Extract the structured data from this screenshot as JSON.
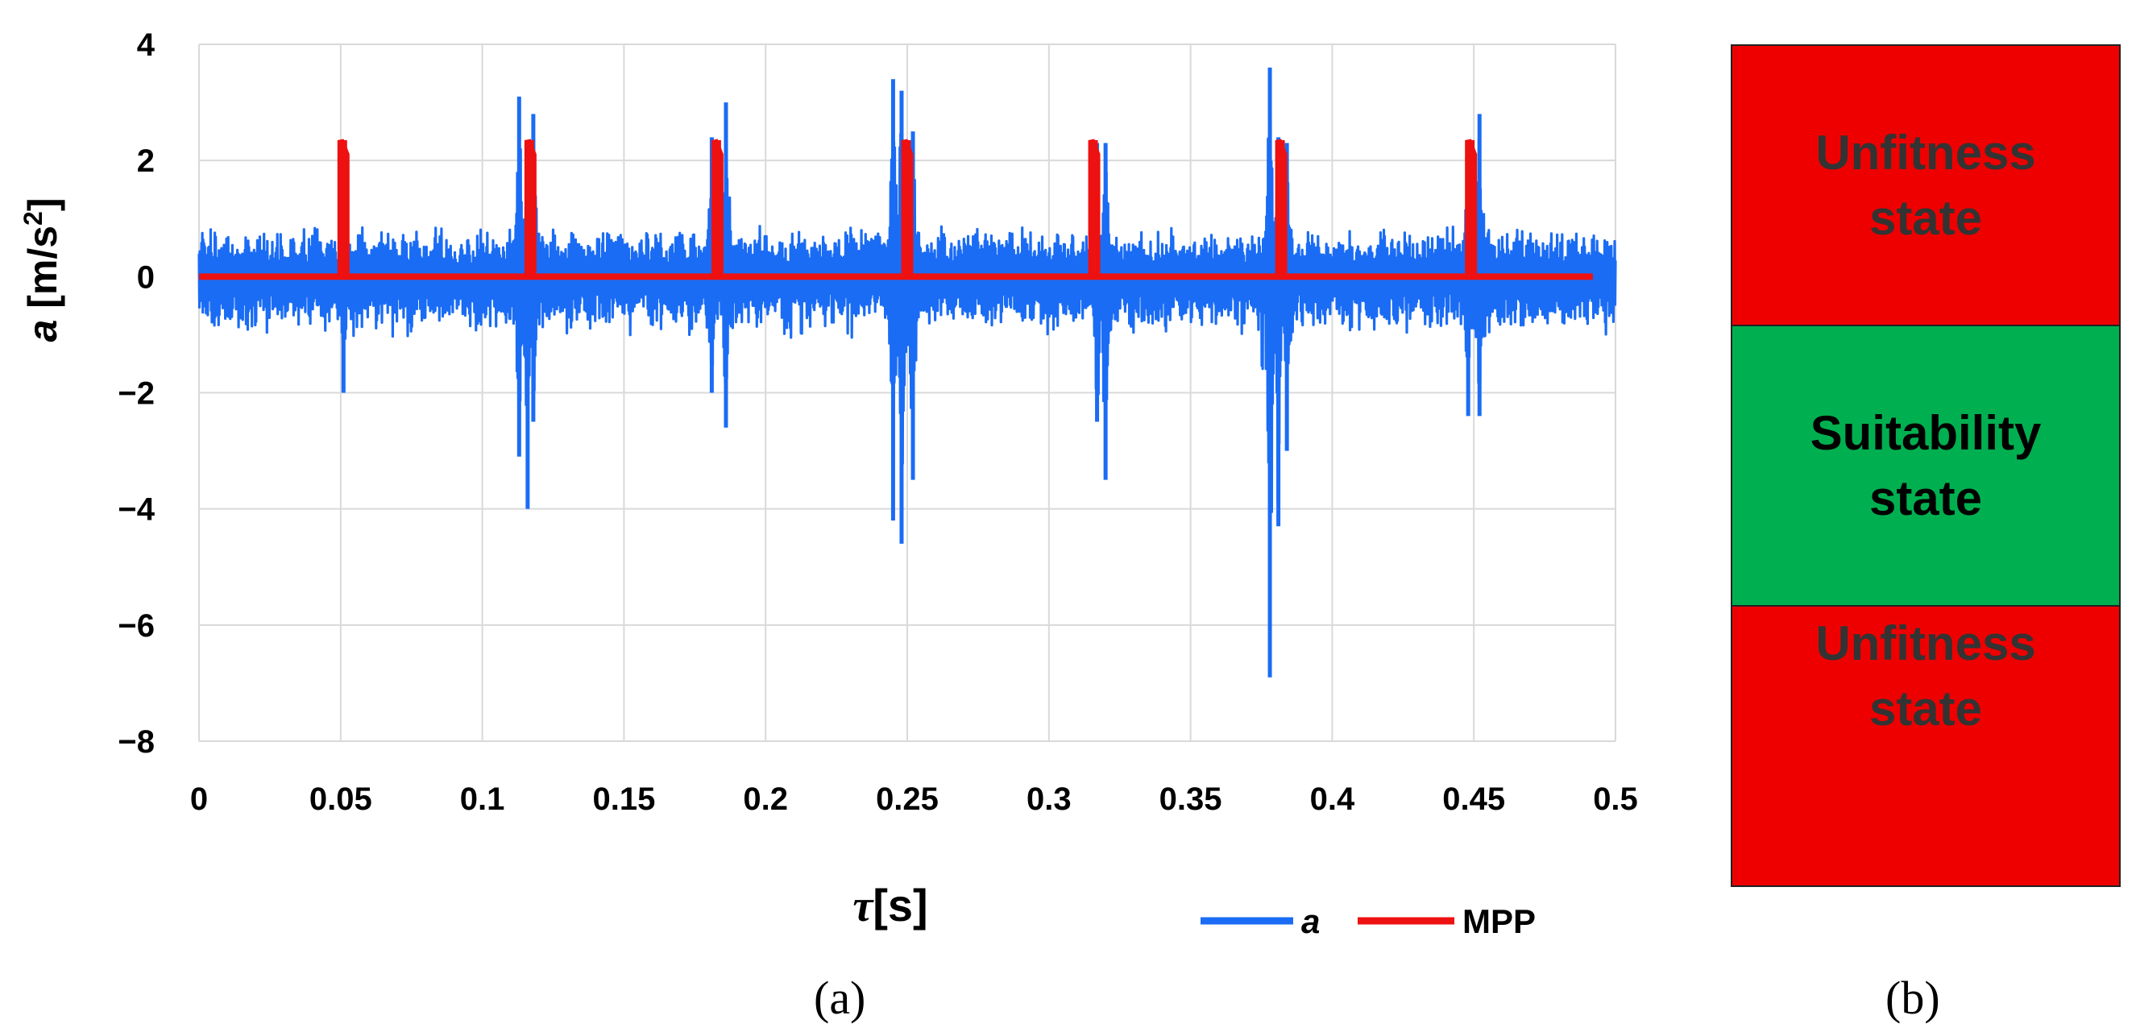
{
  "chart_data": {
    "type": "line",
    "ylabel": "a [m/s²]",
    "ylabel_var": "a",
    "ylabel_unit_base": "[m/s",
    "ylabel_unit_sup": "2",
    "ylabel_unit_end": "]",
    "xlabel_var": "τ",
    "xlabel_unit": "[s]",
    "xlim": [
      0,
      0.5
    ],
    "ylim": [
      -8,
      4
    ],
    "x_ticks": [
      "0",
      "0.05",
      "0.1",
      "0.15",
      "0.2",
      "0.25",
      "0.3",
      "0.35",
      "0.4",
      "0.45",
      "0.5"
    ],
    "y_ticks": [
      "4",
      "2",
      "0",
      "−2",
      "−4",
      "−6",
      "−8"
    ],
    "grid": "vertical and horizontal",
    "legend_position": "bottom-right",
    "series": [
      {
        "name": "a",
        "color": "#1a6cf5",
        "noise_envelope": 0.9,
        "peaks": [
          {
            "x": 0.051,
            "max": 1.5,
            "min": -2.0
          },
          {
            "x": 0.113,
            "max": 3.1,
            "min": -3.1
          },
          {
            "x": 0.116,
            "max": 2.1,
            "min": -4.0
          },
          {
            "x": 0.118,
            "max": 2.8,
            "min": -2.5
          },
          {
            "x": 0.181,
            "max": 2.4,
            "min": -2.0
          },
          {
            "x": 0.186,
            "max": 3.0,
            "min": -2.6
          },
          {
            "x": 0.245,
            "max": 3.4,
            "min": -4.2
          },
          {
            "x": 0.248,
            "max": 3.2,
            "min": -4.6
          },
          {
            "x": 0.252,
            "max": 2.5,
            "min": -3.5
          },
          {
            "x": 0.317,
            "max": 2.3,
            "min": -2.5
          },
          {
            "x": 0.32,
            "max": 2.3,
            "min": -3.5
          },
          {
            "x": 0.378,
            "max": 3.6,
            "min": -6.9
          },
          {
            "x": 0.381,
            "max": 2.4,
            "min": -4.3
          },
          {
            "x": 0.384,
            "max": 2.3,
            "min": -3.0
          },
          {
            "x": 0.448,
            "max": 2.3,
            "min": -2.4
          },
          {
            "x": 0.452,
            "max": 2.8,
            "min": -2.4
          }
        ]
      },
      {
        "name": "MPP",
        "color": "#ee1111",
        "baseline": 0,
        "x_end": 0.492,
        "pulses": [
          {
            "x": 0.05,
            "y": 2.35
          },
          {
            "x": 0.116,
            "y": 2.35
          },
          {
            "x": 0.182,
            "y": 2.35
          },
          {
            "x": 0.249,
            "y": 2.35
          },
          {
            "x": 0.315,
            "y": 2.35
          },
          {
            "x": 0.381,
            "y": 2.35
          },
          {
            "x": 0.448,
            "y": 2.35
          }
        ]
      }
    ]
  },
  "panel_a_label": "(a)",
  "panel_b_label": "(b)",
  "panel_b": {
    "states": [
      {
        "label": "Unfitness\nstate",
        "color": "#ee0000",
        "text_color": "#333333"
      },
      {
        "label": "Suitability\nstate",
        "color": "#00b050",
        "text_color": "#000000"
      },
      {
        "label": "Unfitness\nstate",
        "color": "#ee0000",
        "text_color": "#333333"
      }
    ]
  }
}
